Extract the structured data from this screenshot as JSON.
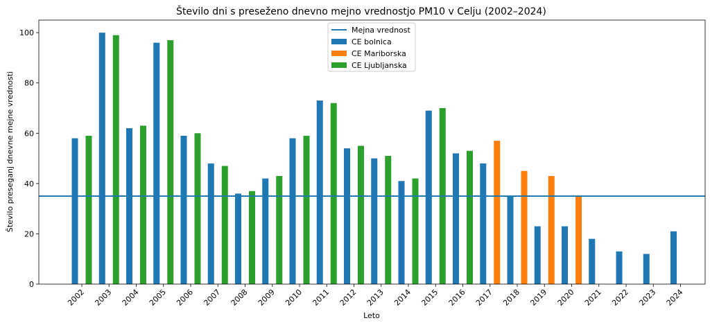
{
  "chart_data": {
    "type": "bar",
    "title": "Število dni s preseženo dnevno mejno vrednostjo PM10 v Celju (2002–2024)",
    "xlabel": "Leto",
    "ylabel": "Število preseganj dnevne mejne vrednosti",
    "ylim": [
      0,
      105
    ],
    "yticks": [
      0,
      20,
      40,
      60,
      80,
      100
    ],
    "grid": false,
    "legend_position": "top-center",
    "categories": [
      "2002",
      "2003",
      "2004",
      "2005",
      "2006",
      "2007",
      "2008",
      "2009",
      "2010",
      "2011",
      "2012",
      "2013",
      "2014",
      "2015",
      "2016",
      "2017",
      "2018",
      "2019",
      "2020",
      "2021",
      "2022",
      "2023",
      "2024"
    ],
    "series": [
      {
        "name": "CE bolnica",
        "color": "#1f77b4",
        "values": [
          58,
          100,
          62,
          96,
          59,
          48,
          36,
          42,
          58,
          73,
          54,
          50,
          41,
          69,
          52,
          48,
          35,
          23,
          23,
          18,
          13,
          12,
          21
        ]
      },
      {
        "name": "CE Mariborska",
        "color": "#ff7f0e",
        "values": [
          null,
          null,
          null,
          null,
          null,
          null,
          null,
          null,
          null,
          null,
          null,
          null,
          null,
          null,
          null,
          57,
          45,
          43,
          35,
          null,
          null,
          null,
          null
        ]
      },
      {
        "name": "CE Ljubljanska",
        "color": "#2ca02c",
        "values": [
          59,
          99,
          63,
          97,
          60,
          47,
          37,
          43,
          59,
          72,
          55,
          51,
          42,
          70,
          53,
          null,
          null,
          null,
          null,
          null,
          null,
          null,
          null
        ]
      }
    ],
    "reference_line": {
      "name": "Mejna vrednost",
      "value": 35,
      "color": "#1f77b4"
    }
  }
}
